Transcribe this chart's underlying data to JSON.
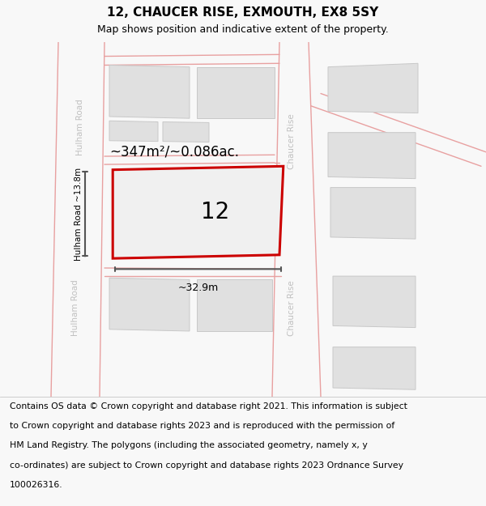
{
  "title": "12, CHAUCER RISE, EXMOUTH, EX8 5SY",
  "subtitle": "Map shows position and indicative extent of the property.",
  "area_label": "~347m²/~0.086ac.",
  "plot_number": "12",
  "width_label": "~32.9m",
  "height_label": "Hulham Road ~13.8m",
  "footer_lines": [
    "Contains OS data © Crown copyright and database right 2021. This information is subject",
    "to Crown copyright and database rights 2023 and is reproduced with the permission of",
    "HM Land Registry. The polygons (including the associated geometry, namely x, y",
    "co-ordinates) are subject to Crown copyright and database rights 2023 Ordnance Survey",
    "100026316."
  ],
  "bg_color": "#f8f8f8",
  "map_bg": "#ffffff",
  "road_line_color": "#e8a0a0",
  "bld_fill": "#e0e0e0",
  "bld_edge": "#c8c8c8",
  "plot_fill": "#f0f0f0",
  "plot_edge": "#cc0000",
  "street_color": "#c0c0c0",
  "dim_color": "#555555",
  "title_fs": 11,
  "subtitle_fs": 9,
  "footer_fs": 7.8,
  "area_fs": 12,
  "plot_num_fs": 20,
  "street_fs": 7.5,
  "dim_fs": 9
}
